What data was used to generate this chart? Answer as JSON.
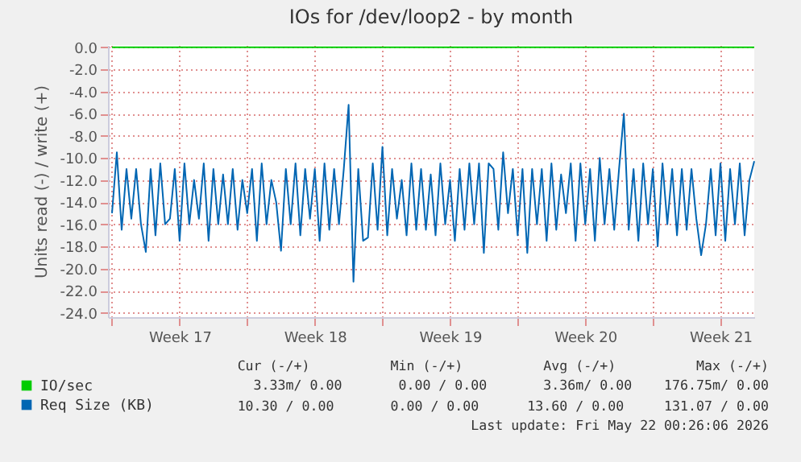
{
  "chart_data": {
    "type": "line",
    "title": "IOs for /dev/loop2 - by month",
    "ylabel": "Units read (-) / write (+)",
    "x": [
      "2026-04-20T00:00",
      "2026-04-20T06:00",
      "2026-04-20T12:00",
      "2026-04-20T18:00",
      "2026-04-21T00:00",
      "2026-04-21T06:00",
      "2026-04-21T12:00",
      "2026-04-21T18:00",
      "2026-04-22T00:00",
      "2026-04-22T06:00",
      "2026-04-22T12:00",
      "2026-04-22T18:00",
      "2026-04-23T00:00",
      "2026-04-23T06:00",
      "2026-04-23T12:00",
      "2026-04-23T18:00",
      "2026-04-24T00:00",
      "2026-04-24T06:00",
      "2026-04-24T12:00",
      "2026-04-24T18:00",
      "2026-04-25T00:00",
      "2026-04-25T06:00",
      "2026-04-25T12:00",
      "2026-04-25T18:00",
      "2026-04-26T00:00",
      "2026-04-26T06:00",
      "2026-04-26T12:00",
      "2026-04-26T18:00",
      "2026-04-27T00:00",
      "2026-04-27T06:00",
      "2026-04-27T12:00",
      "2026-04-27T18:00",
      "2026-04-28T00:00",
      "2026-04-28T06:00",
      "2026-04-28T12:00",
      "2026-04-28T18:00",
      "2026-04-29T00:00",
      "2026-04-29T06:00",
      "2026-04-29T12:00",
      "2026-04-29T18:00",
      "2026-04-30T00:00",
      "2026-04-30T06:00",
      "2026-04-30T12:00",
      "2026-04-30T18:00",
      "2026-05-01T00:00",
      "2026-05-01T06:00",
      "2026-05-01T12:00",
      "2026-05-01T18:00",
      "2026-05-02T00:00",
      "2026-05-02T06:00",
      "2026-05-02T12:00",
      "2026-05-02T18:00",
      "2026-05-03T00:00",
      "2026-05-03T06:00",
      "2026-05-03T12:00",
      "2026-05-03T18:00",
      "2026-05-04T00:00",
      "2026-05-04T06:00",
      "2026-05-04T12:00",
      "2026-05-04T18:00",
      "2026-05-05T00:00",
      "2026-05-05T06:00",
      "2026-05-05T12:00",
      "2026-05-05T18:00",
      "2026-05-06T00:00",
      "2026-05-06T06:00",
      "2026-05-06T12:00",
      "2026-05-06T18:00",
      "2026-05-07T00:00",
      "2026-05-07T06:00",
      "2026-05-07T12:00",
      "2026-05-07T18:00",
      "2026-05-08T00:00",
      "2026-05-08T06:00",
      "2026-05-08T12:00",
      "2026-05-08T18:00",
      "2026-05-09T00:00",
      "2026-05-09T06:00",
      "2026-05-09T12:00",
      "2026-05-09T18:00",
      "2026-05-10T00:00",
      "2026-05-10T06:00",
      "2026-05-10T12:00",
      "2026-05-10T18:00",
      "2026-05-11T00:00",
      "2026-05-11T06:00",
      "2026-05-11T12:00",
      "2026-05-11T18:00",
      "2026-05-12T00:00",
      "2026-05-12T06:00",
      "2026-05-12T12:00",
      "2026-05-12T18:00",
      "2026-05-13T00:00",
      "2026-05-13T06:00",
      "2026-05-13T12:00",
      "2026-05-13T18:00",
      "2026-05-14T00:00",
      "2026-05-14T06:00",
      "2026-05-14T12:00",
      "2026-05-14T18:00",
      "2026-05-15T00:00",
      "2026-05-15T06:00",
      "2026-05-15T12:00",
      "2026-05-15T18:00",
      "2026-05-16T00:00",
      "2026-05-16T06:00",
      "2026-05-16T12:00",
      "2026-05-16T18:00",
      "2026-05-17T00:00",
      "2026-05-17T06:00",
      "2026-05-17T12:00",
      "2026-05-17T18:00",
      "2026-05-18T00:00",
      "2026-05-18T06:00",
      "2026-05-18T12:00",
      "2026-05-18T18:00",
      "2026-05-19T00:00",
      "2026-05-19T06:00",
      "2026-05-19T12:00",
      "2026-05-19T18:00",
      "2026-05-20T00:00",
      "2026-05-20T06:00",
      "2026-05-20T12:00",
      "2026-05-20T18:00",
      "2026-05-21T00:00",
      "2026-05-21T06:00",
      "2026-05-21T12:00",
      "2026-05-21T18:00",
      "2026-05-22T00:00",
      "2026-05-22T06:00",
      "2026-05-22T12:00",
      "2026-05-22T18:00",
      "2026-05-23T00:00",
      "2026-05-23T06:00"
    ],
    "series": [
      {
        "name": "IO/sec",
        "color": "#00cc00",
        "x": [
          "2026-04-20T00:00",
          "2026-05-23T06:00"
        ],
        "values": [
          0,
          0
        ]
      },
      {
        "name": "Req Size (KB)",
        "color": "#0066b3",
        "values": [
          -15,
          -9.5,
          -16.5,
          -11,
          -15.5,
          -11,
          -16,
          -18.5,
          -11,
          -17,
          -10.5,
          -16,
          -15.5,
          -11,
          -17.5,
          -10.5,
          -16,
          -12,
          -15.5,
          -10.5,
          -17.5,
          -11,
          -16,
          -11.5,
          -16,
          -11,
          -16.5,
          -12,
          -15,
          -11,
          -17.5,
          -10.5,
          -16,
          -12,
          -14,
          -18.4,
          -11,
          -16,
          -10.5,
          -17,
          -11,
          -15.5,
          -11,
          -17.5,
          -10.5,
          -16.5,
          -11,
          -16,
          -11,
          -5.2,
          -21.2,
          -11,
          -17.5,
          -17.2,
          -10.5,
          -16.5,
          -9,
          -17,
          -11,
          -15.5,
          -12,
          -17,
          -10.5,
          -16.5,
          -11,
          -16.5,
          -11.5,
          -17,
          -10.5,
          -16,
          -12,
          -17.5,
          -11,
          -16.5,
          -10.5,
          -16,
          -10.5,
          -18.6,
          -10.5,
          -11,
          -16.5,
          -9.5,
          -15,
          -11,
          -17,
          -11,
          -18.6,
          -11,
          -16,
          -11,
          -17.5,
          -10.5,
          -16.5,
          -11.5,
          -15,
          -10.5,
          -17.5,
          -10.5,
          -16,
          -11,
          -17.5,
          -10,
          -16,
          -11,
          -16.5,
          -11,
          -6,
          -16.5,
          -11,
          -17.5,
          -10.5,
          -16,
          -11,
          -18,
          -10.5,
          -16,
          -11,
          -17,
          -11,
          -16.5,
          -11,
          -15.5,
          -18.8,
          -16,
          -11,
          -17,
          -10.5,
          -17.5,
          -11,
          -16,
          -10.5,
          -17,
          -12,
          -10.3
        ]
      }
    ],
    "xlim": [
      "2026-04-19T19:00",
      "2026-05-23T06:00"
    ],
    "xticks": [
      {
        "value": "2026-04-20T00:00",
        "label": null
      },
      {
        "value": "2026-04-23T12:00",
        "label": "Week 17"
      },
      {
        "value": "2026-04-27T00:00",
        "label": null
      },
      {
        "value": "2026-04-30T12:00",
        "label": "Week 18"
      },
      {
        "value": "2026-05-04T00:00",
        "label": null
      },
      {
        "value": "2026-05-07T12:00",
        "label": "Week 19"
      },
      {
        "value": "2026-05-11T00:00",
        "label": null
      },
      {
        "value": "2026-05-14T12:00",
        "label": "Week 20"
      },
      {
        "value": "2026-05-18T00:00",
        "label": null
      },
      {
        "value": "2026-05-21T12:00",
        "label": "Week 21"
      }
    ],
    "ylim": [
      -24.4,
      0.2
    ],
    "yticks": [
      {
        "value": -24,
        "label": "-24.0"
      },
      {
        "value": -22,
        "label": "-22.0"
      },
      {
        "value": -20,
        "label": "-20.0"
      },
      {
        "value": -18,
        "label": "-18.0"
      },
      {
        "value": -16,
        "label": "-16.0"
      },
      {
        "value": -14,
        "label": "-14.0"
      },
      {
        "value": -12,
        "label": "-12.0"
      },
      {
        "value": -10,
        "label": "-10.0"
      },
      {
        "value": -8,
        "label": "-8.0"
      },
      {
        "value": -6,
        "label": "-6.0"
      },
      {
        "value": -4,
        "label": "-4.0"
      },
      {
        "value": -2,
        "label": "-2.0"
      },
      {
        "value": 0,
        "label": "0.0"
      }
    ],
    "grid": true,
    "legend": "bottom left",
    "marker": "none",
    "line_style": "solid",
    "annotations": [
      "Cur (-/+)          Min (-/+)          Avg (-/+)          Max (-/+)",
      "3.33m/ 0.00       0.00 / 0.00       3.36m/ 0.00    176.75m/ 0.00",
      "10.30 / 0.00       0.00 / 0.00      13.60 / 0.00     131.07 / 0.00",
      "Last update: Fri May 22 00:26:06 2026"
    ]
  }
}
